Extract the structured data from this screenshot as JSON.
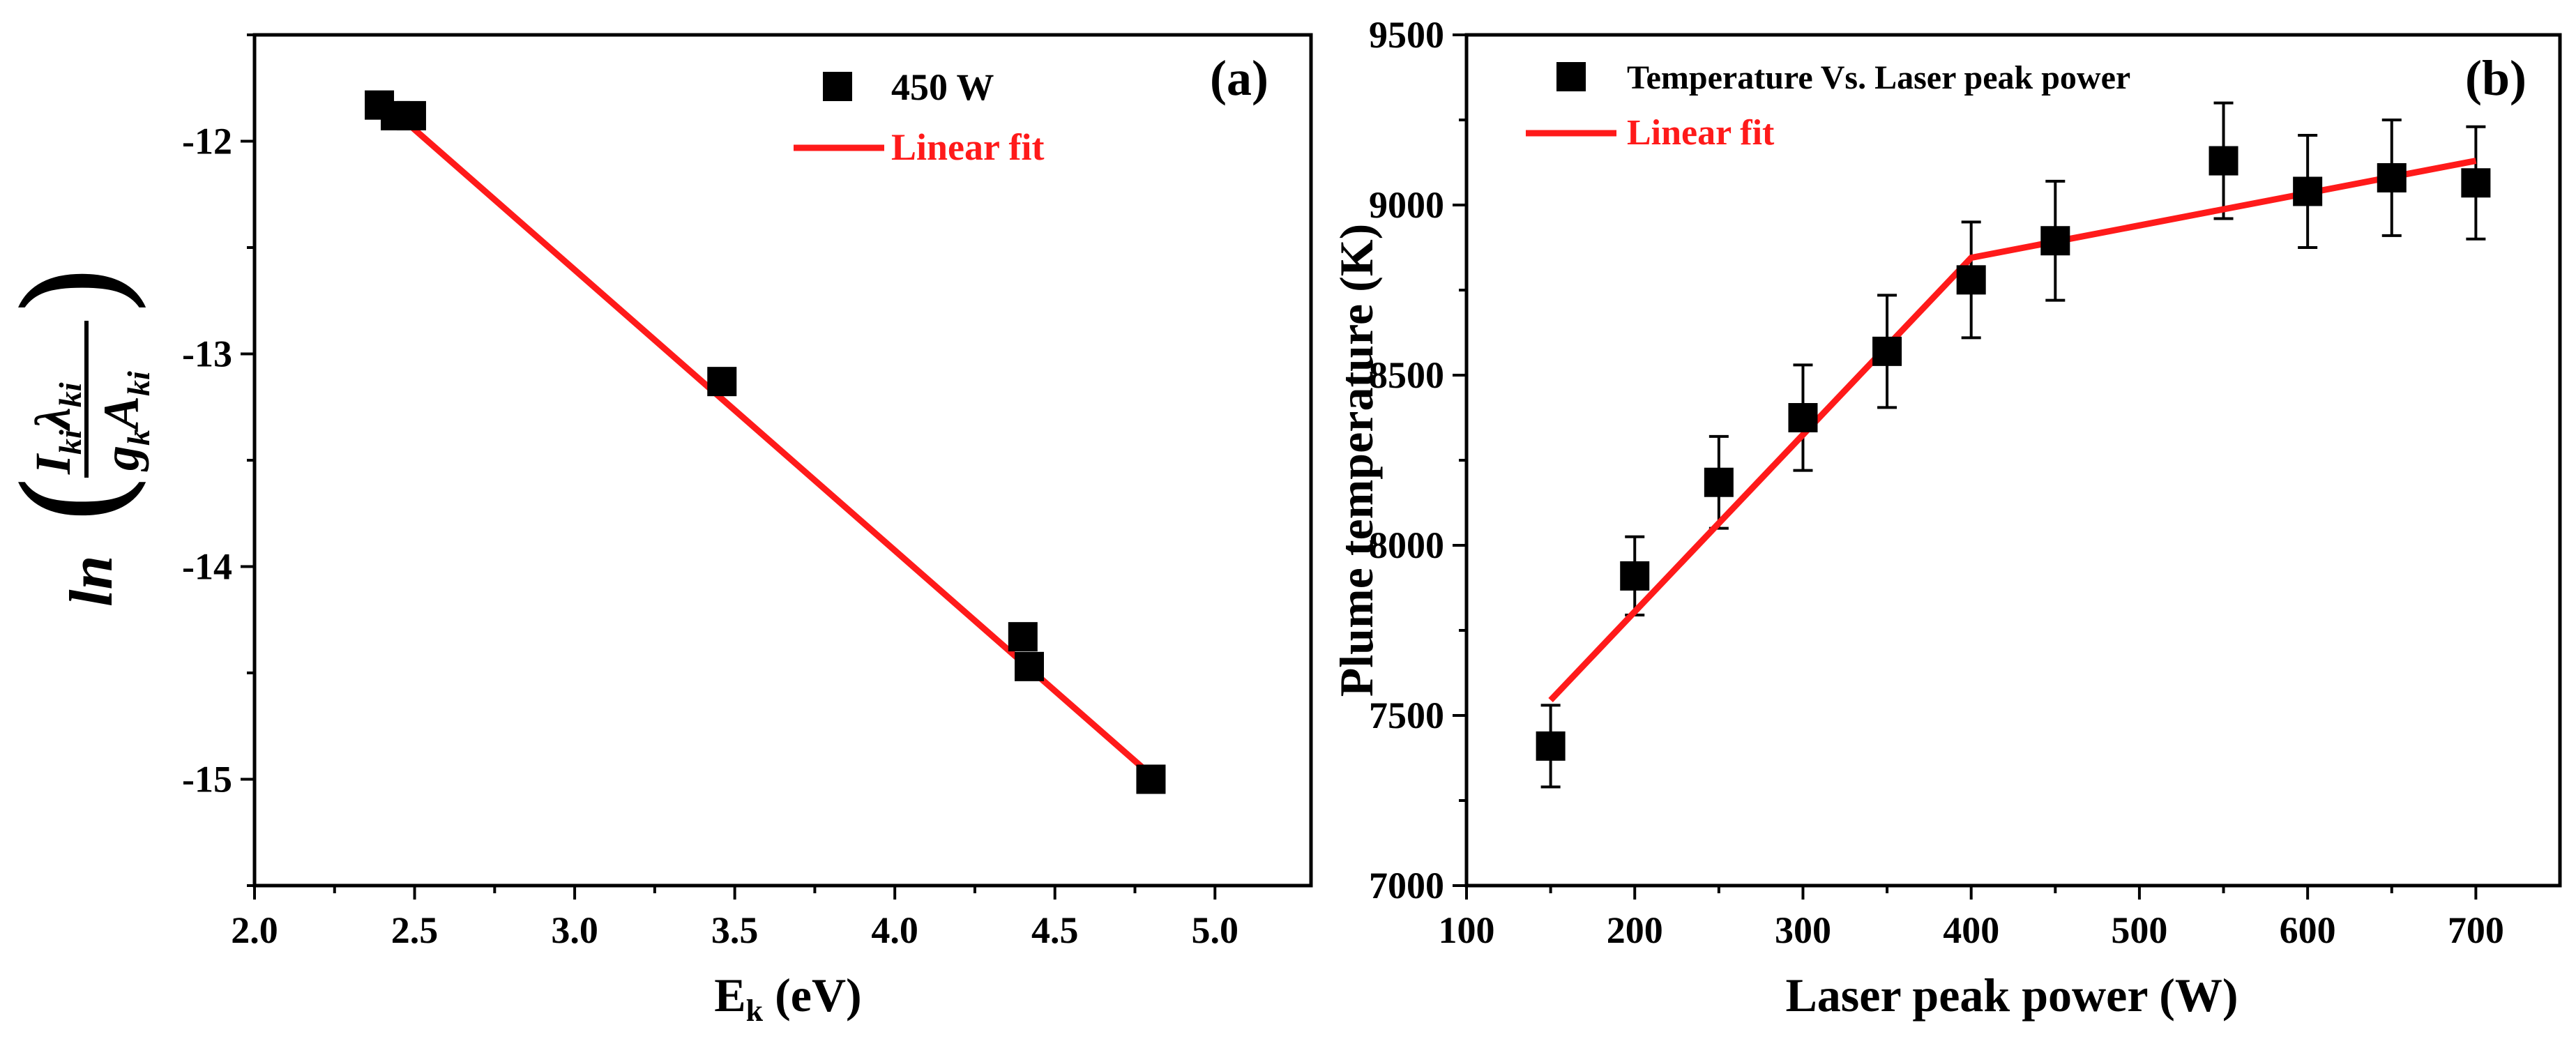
{
  "colors": {
    "marker": "#000000",
    "fit": "#ff1a1a",
    "axis": "#000000",
    "background": "#ffffff"
  },
  "chart_data": [
    {
      "panel": "(a)",
      "type": "scatter",
      "xlabel": "E_k (eV)",
      "xlabel_main": "E",
      "xlabel_sub": "k",
      "xlabel_unit": " (eV)",
      "ylabel": "ln((I_ki λ_ki)/(g_k A_ki))",
      "ylabel_parts": {
        "ln": "ln",
        "I": "I",
        "lambda": "λ",
        "g": "g",
        "A": "A",
        "sub": "ki",
        "sub_k": "k"
      },
      "xlim": [
        2.0,
        5.3
      ],
      "ylim": [
        -15.5,
        -11.5
      ],
      "xticks": [
        2.0,
        2.5,
        3.0,
        3.5,
        4.0,
        4.5,
        5.0
      ],
      "xtick_labels": [
        "2.0",
        "2.5",
        "3.0",
        "3.5",
        "4.0",
        "4.5",
        "5.0"
      ],
      "yticks": [
        -12,
        -13,
        -14,
        -15
      ],
      "ytick_labels": [
        "-12",
        "-13",
        "-14",
        "-15"
      ],
      "series": [
        {
          "name": "450 W",
          "kind": "scatter",
          "marker": "square",
          "x": [
            2.39,
            2.44,
            2.49,
            3.46,
            4.4,
            4.42,
            4.8
          ],
          "y": [
            -11.83,
            -11.88,
            -11.88,
            -13.13,
            -14.33,
            -14.47,
            -15.0
          ]
        },
        {
          "name": "Linear fit",
          "kind": "line",
          "x": [
            2.39,
            4.8
          ],
          "y": [
            -11.8,
            -14.98
          ]
        }
      ],
      "legend": [
        "450 W",
        "Linear fit"
      ],
      "legend_position": "top-right"
    },
    {
      "panel": "(b)",
      "type": "scatter",
      "xlabel": "Laser peak power (W)",
      "ylabel": "Plume temperature (K)",
      "xlim": [
        100,
        750
      ],
      "ylim": [
        7000,
        9500
      ],
      "xticks": [
        100,
        200,
        300,
        400,
        500,
        600,
        700
      ],
      "xtick_labels": [
        "100",
        "200",
        "300",
        "400",
        "500",
        "600",
        "700"
      ],
      "yticks": [
        7000,
        7500,
        8000,
        8500,
        9000,
        9500
      ],
      "ytick_labels": [
        "7000",
        "7500",
        "8000",
        "8500",
        "9000",
        "9500"
      ],
      "series": [
        {
          "name": "Temperature Vs. Laser peak power",
          "kind": "scatter",
          "marker": "square",
          "x": [
            150,
            200,
            250,
            300,
            350,
            400,
            450,
            550,
            600,
            650,
            700
          ],
          "y": [
            7410,
            7910,
            8185,
            8375,
            8570,
            8780,
            8895,
            9130,
            9040,
            9080,
            9065
          ],
          "yerr": [
            120,
            115,
            135,
            155,
            165,
            170,
            175,
            170,
            165,
            170,
            165
          ]
        },
        {
          "name": "Linear fit",
          "kind": "line",
          "x": [
            150,
            400,
            700
          ],
          "y": [
            7545,
            8845,
            9130
          ]
        }
      ],
      "legend": [
        "Temperature Vs. Laser peak power",
        "Linear fit"
      ],
      "legend_position": "top-left"
    }
  ]
}
